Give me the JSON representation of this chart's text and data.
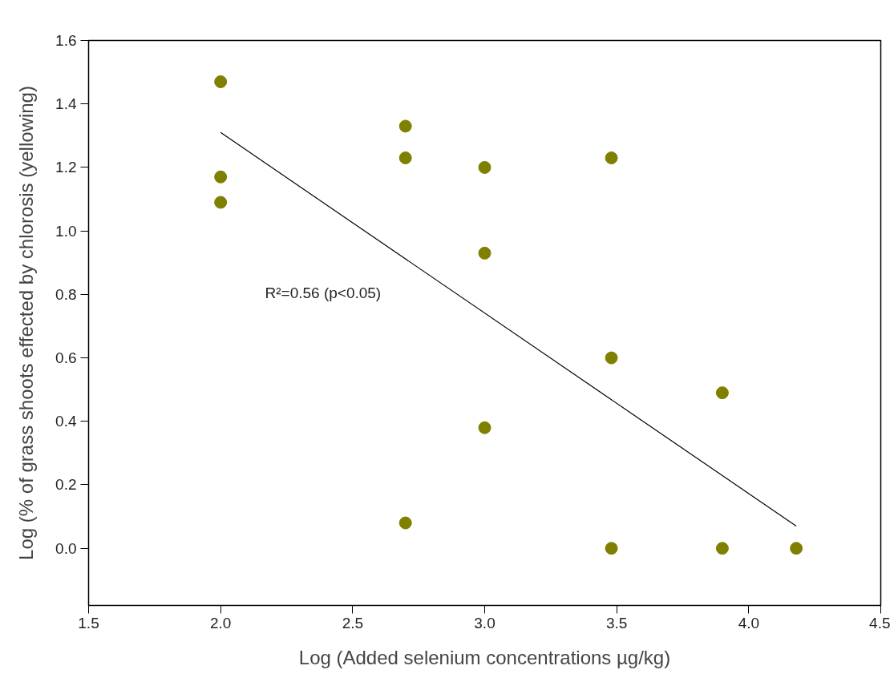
{
  "chart_data": {
    "type": "scatter",
    "xlabel": "Log (Added selenium concentrations µg/kg)",
    "ylabel": "Log (% of grass shoots effected by chlorosis (yellowing)",
    "xlim": [
      1.5,
      4.5
    ],
    "xticks": [
      1.5,
      {
        "value": 2,
        "label": "2.0"
      },
      2.5,
      {
        "value": 3,
        "label": "3.0"
      },
      3.5,
      {
        "value": 4,
        "label": "4.0"
      },
      4.5
    ],
    "ylim": [
      -0.18,
      1.6
    ],
    "yticks": [
      {
        "value": 0,
        "label": "0.0"
      },
      0.2,
      0.4,
      0.6,
      0.8,
      {
        "value": 1,
        "label": "1.0"
      },
      1.2,
      1.4,
      1.6
    ],
    "grid": false,
    "series": [
      {
        "color": "#808000",
        "marker": "circle",
        "x": [
          2.0,
          2.0,
          2.0,
          2.7,
          2.7,
          2.7,
          3.0,
          3.0,
          3.0,
          3.48,
          3.48,
          3.48,
          3.9,
          3.9,
          4.18
        ],
        "values": [
          1.47,
          1.17,
          1.09,
          1.33,
          1.23,
          0.08,
          1.2,
          0.93,
          0.38,
          1.23,
          0.6,
          0.0,
          0.49,
          0.0,
          0.0
        ]
      },
      {
        "type": "line",
        "color": "#000000",
        "line_style": "solid",
        "x": [
          2.0,
          4.18
        ],
        "values": [
          1.31,
          0.07
        ]
      }
    ],
    "annotations": [
      "R²=0.56 (p<0.05)"
    ]
  }
}
